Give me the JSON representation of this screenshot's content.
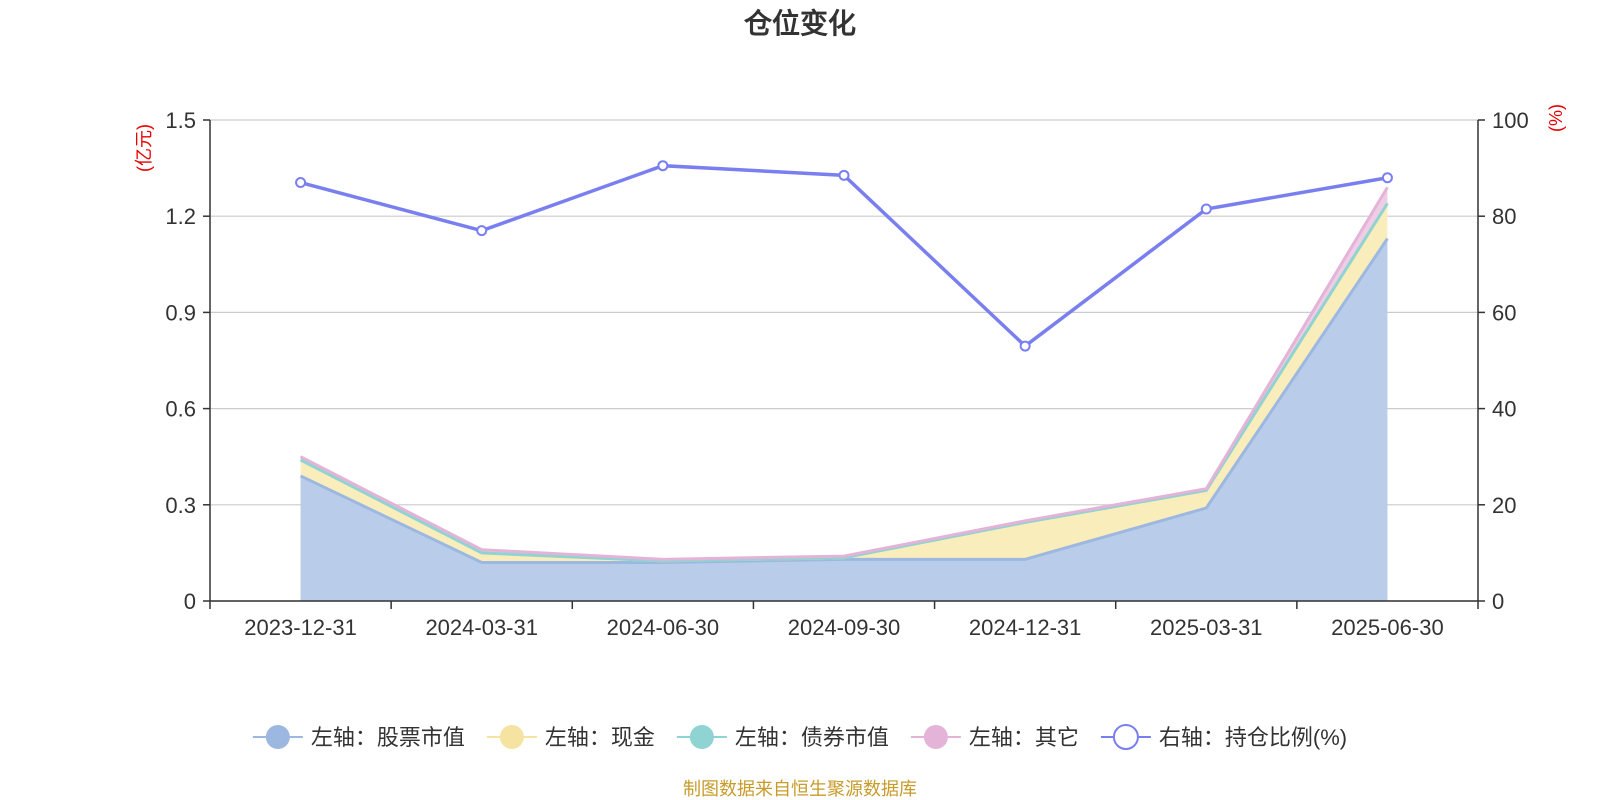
{
  "chart_data": {
    "type": "area",
    "title": "仓位变化",
    "categories": [
      "2023-12-31",
      "2024-03-31",
      "2024-06-30",
      "2024-09-30",
      "2024-12-31",
      "2025-03-31",
      "2025-06-30"
    ],
    "left_axis": {
      "unit": "(亿元)",
      "ylim": [
        0,
        1.5
      ],
      "ticks": [
        "0",
        "0.3",
        "0.6",
        "0.9",
        "1.2",
        "1.5"
      ],
      "tick_values": [
        0,
        0.3,
        0.6,
        0.9,
        1.2,
        1.5
      ]
    },
    "right_axis": {
      "unit": "(%)",
      "ylim": [
        0,
        100
      ],
      "ticks": [
        "0",
        "20",
        "40",
        "60",
        "80",
        "100"
      ],
      "tick_values": [
        0,
        20,
        40,
        60,
        80,
        100
      ]
    },
    "series": [
      {
        "name": "左轴：股票市值",
        "axis": "left",
        "type": "area",
        "stack": true,
        "color": "#9db8e0",
        "fill": "#b9cdea",
        "values": [
          0.39,
          0.12,
          0.12,
          0.13,
          0.13,
          0.29,
          1.13
        ]
      },
      {
        "name": "左轴：现金",
        "axis": "left",
        "type": "area",
        "stack": true,
        "color": "#f7e3a1",
        "fill": "#faedbc",
        "values": [
          0.05,
          0.03,
          0.005,
          0.005,
          0.115,
          0.055,
          0.11
        ]
      },
      {
        "name": "左轴：债券市值",
        "axis": "left",
        "type": "area",
        "stack": true,
        "color": "#8fd3d3",
        "fill": "#b2e2e2",
        "values": [
          0,
          0,
          0,
          0,
          0,
          0,
          0
        ]
      },
      {
        "name": "左轴：其它",
        "axis": "left",
        "type": "area",
        "stack": true,
        "color": "#e3b3d8",
        "fill": "#efcde7",
        "values": [
          0.01,
          0.01,
          0.005,
          0.005,
          0.005,
          0.005,
          0.05
        ]
      },
      {
        "name": "右轴：持仓比例(%)",
        "axis": "right",
        "type": "line",
        "color": "#7a7ff0",
        "values": [
          87,
          77,
          90.5,
          88.5,
          53,
          81.5,
          88
        ]
      }
    ],
    "grid": true,
    "legend_position": "bottom",
    "source": "制图数据来自恒生聚源数据库"
  }
}
